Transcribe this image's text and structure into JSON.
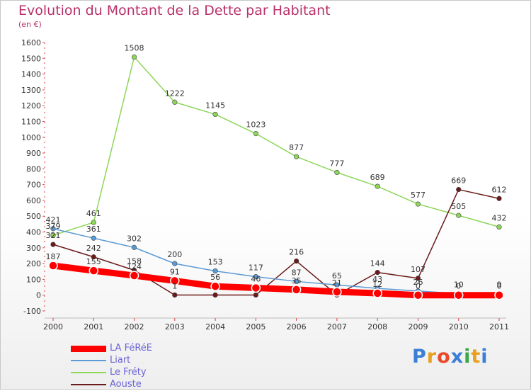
{
  "header": {
    "title": "Evolution du Montant de la Dette par Habitant",
    "subtitle": "(en €)"
  },
  "logo": {
    "text": "Proxiti",
    "letter_colors": [
      "#3a7fd5",
      "#e8a020",
      "#e84a2c",
      "#3a7fd5",
      "#3aa845",
      "#e8a020",
      "#3a7fd5"
    ]
  },
  "colors": {
    "LA FéRéE": "#ff0000",
    "Liart": "#5b9bd5",
    "Le Fréty": "#8ed65a",
    "Aouste": "#6b1a1a"
  },
  "chart_data": {
    "type": "line",
    "title": "Evolution du Montant de la Dette par Habitant",
    "subtitle": "(en €)",
    "xlabel": "",
    "ylabel": "",
    "categories": [
      "2000",
      "2001",
      "2002",
      "2003",
      "2004",
      "2005",
      "2006",
      "2007",
      "2008",
      "2009",
      "2010",
      "2011"
    ],
    "ylim": [
      -100,
      1600
    ],
    "yticks": [
      -100,
      0,
      100,
      200,
      300,
      400,
      500,
      600,
      700,
      800,
      900,
      1000,
      1100,
      1200,
      1300,
      1400,
      1500,
      1600
    ],
    "grid": false,
    "legend_position": "bottom-left",
    "series": [
      {
        "name": "LA FéRéE",
        "values": [
          187,
          155,
          124,
          91,
          56,
          46,
          35,
          21,
          12,
          0,
          0,
          0
        ],
        "labels": [
          "187",
          "155",
          "124",
          "91",
          "56",
          "46",
          "35",
          "21",
          "12",
          "0",
          "0",
          "0"
        ]
      },
      {
        "name": "Liart",
        "values": [
          421,
          361,
          302,
          200,
          153,
          117,
          87,
          65,
          43,
          26,
          10,
          9
        ],
        "labels": [
          "421",
          "361",
          "302",
          "200",
          "153",
          "117",
          "87",
          "65",
          "43",
          "26",
          "10",
          "9"
        ]
      },
      {
        "name": "Le Fréty",
        "values": [
          379,
          461,
          1508,
          1222,
          1145,
          1023,
          877,
          777,
          689,
          577,
          505,
          432
        ],
        "labels": [
          "379",
          "461",
          "1508",
          "1222",
          "1145",
          "1023",
          "877",
          "777",
          "689",
          "577",
          "505",
          "432"
        ]
      },
      {
        "name": "Aouste",
        "values": [
          321,
          242,
          158,
          1,
          1,
          1,
          216,
          1,
          144,
          107,
          669,
          612
        ],
        "labels": [
          "321",
          "242",
          "158",
          "1",
          "",
          "",
          "216",
          "",
          "144",
          "107",
          "669",
          "612"
        ]
      }
    ]
  }
}
